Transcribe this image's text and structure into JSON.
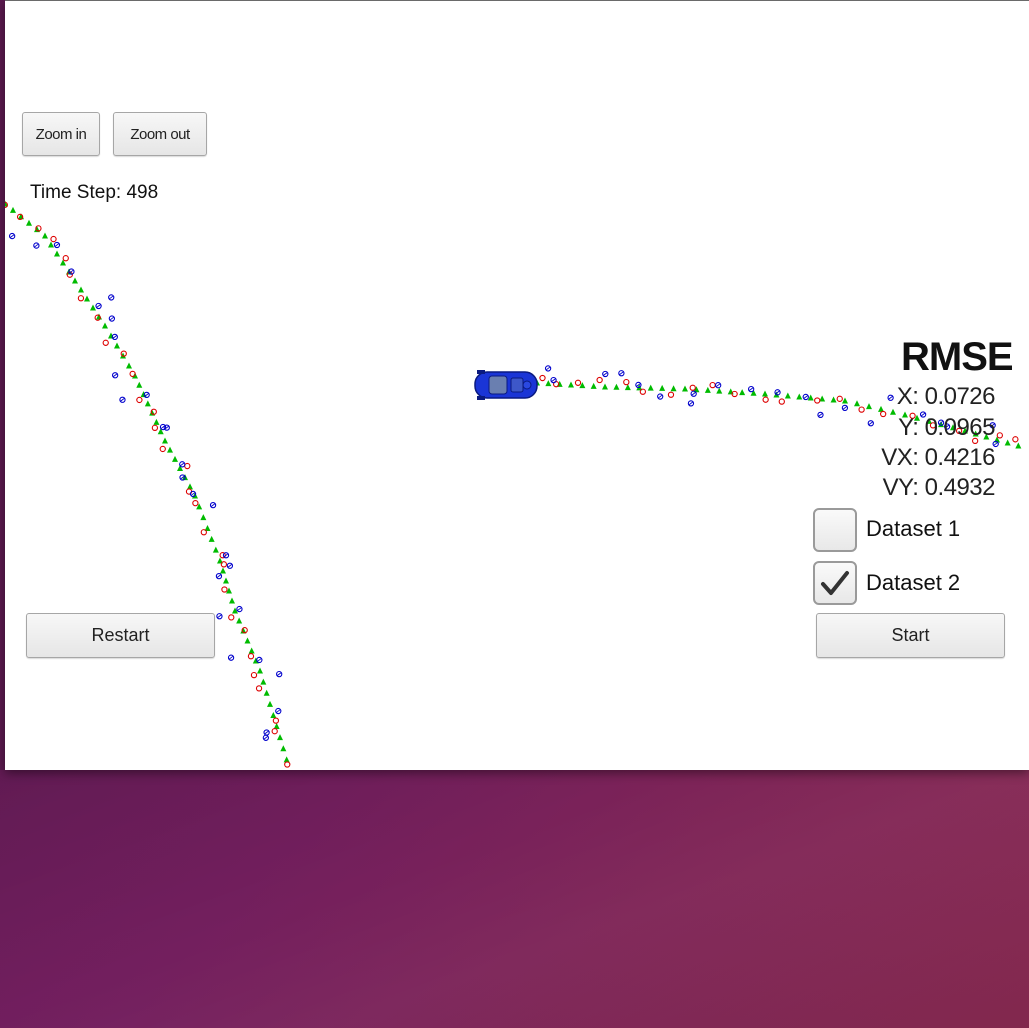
{
  "toolbar": {
    "zoom_in": "Zoom in",
    "zoom_out": "Zoom out"
  },
  "time_step": "Time Step: 498",
  "rmse": {
    "title": "RMSE",
    "x": "X: 0.0726",
    "y": "Y: 0.0965",
    "vx": "VX: 0.4216",
    "vy": "VY: 0.4932"
  },
  "datasets": [
    {
      "label": "Dataset 1",
      "checked": false
    },
    {
      "label": "Dataset 2",
      "checked": true
    }
  ],
  "controls": {
    "restart": "Restart",
    "start": "Start"
  },
  "colors": {
    "ground_truth": "#00bb00",
    "lidar": "#dd0000",
    "radar": "#0000cc",
    "car": "#1a35d6"
  },
  "icons": {
    "check": "checkmark-icon",
    "car": "car-icon"
  }
}
